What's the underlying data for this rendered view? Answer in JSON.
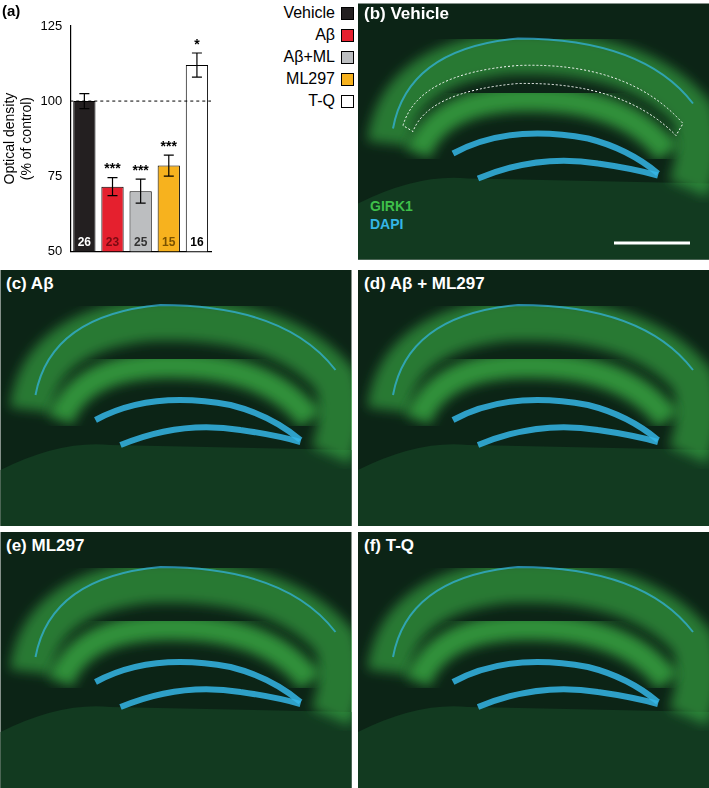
{
  "chart_data": {
    "type": "bar",
    "panel_label": "(a)",
    "categories": [
      "Vehicle",
      "Aβ",
      "Aβ+ML",
      "ML297",
      "T-Q"
    ],
    "values": [
      100,
      71.5,
      70,
      78.5,
      112
    ],
    "errors": [
      2.5,
      3,
      4,
      3.5,
      4
    ],
    "n": [
      26,
      23,
      25,
      15,
      16
    ],
    "significance": [
      null,
      "***",
      "***",
      "***",
      "*"
    ],
    "colors": [
      "#231f20",
      "#e5202e",
      "#bcbec0",
      "#f7b21e",
      "#ffffff"
    ],
    "ylabel": [
      "Optical density",
      "(% of control)"
    ],
    "ylim": [
      50,
      125
    ],
    "yticks": [
      50,
      75,
      100,
      125
    ],
    "hline": 100,
    "grid": false,
    "legend": "top right",
    "tick_labels": "y"
  },
  "panels": [
    {
      "letter": "(b)",
      "title": "Vehicle"
    },
    {
      "letter": "(c)",
      "title": "Aβ"
    },
    {
      "letter": "(d)",
      "title": "Aβ + ML297"
    },
    {
      "letter": "(e)",
      "title": "ML297"
    },
    {
      "letter": "(f)",
      "title": "T-Q"
    }
  ],
  "channels": [
    {
      "name": "GIRK1",
      "color": "#3fbf4a"
    },
    {
      "name": "DAPI",
      "color": "#35b6e6"
    }
  ]
}
